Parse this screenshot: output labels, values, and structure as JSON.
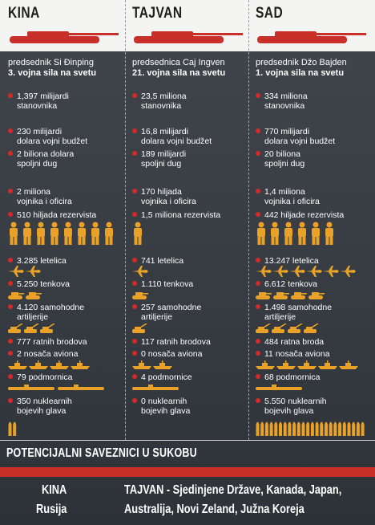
{
  "columns": [
    {
      "country": "KINA",
      "leader": "predsednik Si Đinping",
      "rank": "3. vojna sila na svetu",
      "population": [
        "1,397 milijardi",
        "stanovnika"
      ],
      "budget": [
        "230 milijardi",
        "dolara vojni budžet"
      ],
      "debt": [
        "2 biliona dolara",
        "spoljni dug"
      ],
      "soldiers": [
        "2 miliona",
        "vojnika i oficira"
      ],
      "reserves": "510 hiljada rezervista",
      "aircraft": "3.285 letelica",
      "tanks": "5.250 tenkova",
      "artillery": [
        "4.120 samohodne",
        "artiljerije"
      ],
      "ships": "777 ratnih brodova",
      "carriers": "2 nosača aviona",
      "submarines": "79 podmornica",
      "nukes": [
        "350 nuklearnih",
        "bojevih glava"
      ]
    },
    {
      "country": "TAJVAN",
      "leader": "predsednica Caj Ingven",
      "rank": "21. vojna sila na svetu",
      "population": [
        "23,5 miliona",
        "stanovnika"
      ],
      "budget": [
        "16,8 milijardi",
        "dolara vojni budžet"
      ],
      "debt": [
        "189 milijardi",
        "spoljni dug"
      ],
      "soldiers": [
        "170 hiljada",
        "vojnika i oficira"
      ],
      "reserves": "1,5 miliona rezervista",
      "aircraft": "741 letelica",
      "tanks": "1.110 tenkova",
      "artillery": [
        "257 samohodne",
        "artiljerije"
      ],
      "ships": "117 ratnih brodova",
      "carriers": "0 nosača aviona",
      "submarines": "4 podmornice",
      "nukes": [
        "0 nuklearnih",
        "bojevih glava"
      ]
    },
    {
      "country": "SAD",
      "leader": "predsednik Džo Bajden",
      "rank": "1. vojna sila na svetu",
      "population": [
        "334 miliona",
        "stanovnika"
      ],
      "budget": [
        "770 milijardi",
        "dolara vojni budžet"
      ],
      "debt": [
        "20  biliona",
        "spoljni dug"
      ],
      "soldiers": [
        "1,4 miliona",
        "vojnika i oficira"
      ],
      "reserves": "442 hiljade rezervista",
      "aircraft": "13.247 letelica",
      "tanks": "6.612 tenkova",
      "artillery": [
        "1.498 samohodne",
        "artiljerije"
      ],
      "ships": "484 ratna broda",
      "carriers": "11 nosača aviona",
      "submarines": "68 podmornica",
      "nukes": [
        "5.550 nuklearnih",
        "bojevih glava"
      ]
    }
  ],
  "allies": {
    "title": "POTENCIJALNI SAVEZNICI U SUKOBU",
    "china": [
      "KINA",
      "Rusija"
    ],
    "taiwan": [
      "TAJVAN - Sjedinjene Države, Kanada, Japan,",
      "Australija, Novi Zeland, Južna Koreja"
    ]
  },
  "icon_counts": {
    "soldiers": [
      8,
      1,
      6
    ],
    "planes": [
      2,
      1,
      6
    ],
    "tanks": [
      2,
      1,
      4
    ],
    "artillery": [
      3,
      1,
      4
    ],
    "ships": [
      4,
      2,
      5
    ],
    "nukes": [
      2,
      0,
      24
    ]
  },
  "colors": {
    "accent": "#c9302a",
    "icon": "#e9a227",
    "dot": "#d42a2a"
  }
}
